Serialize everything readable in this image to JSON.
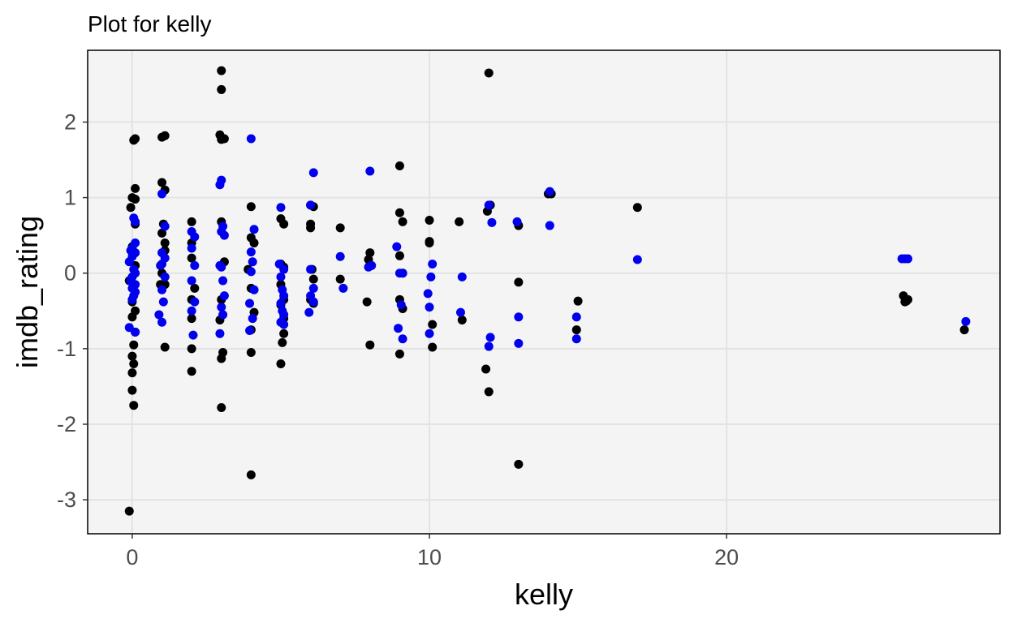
{
  "chart_data": {
    "type": "scatter",
    "title": "Plot for  kelly",
    "xlabel": "kelly",
    "ylabel": "imdb_rating",
    "xlim": [
      -1.5,
      29.2
    ],
    "ylim": [
      -3.45,
      2.95
    ],
    "x_ticks": [
      {
        "value": 0,
        "label": "0"
      },
      {
        "value": 10,
        "label": "10"
      },
      {
        "value": 20,
        "label": "20"
      }
    ],
    "y_ticks": [
      {
        "value": -3,
        "label": "-3"
      },
      {
        "value": -2,
        "label": "-2"
      },
      {
        "value": -1,
        "label": "-1"
      },
      {
        "value": 0,
        "label": "0"
      },
      {
        "value": 1,
        "label": "1"
      },
      {
        "value": 2,
        "label": "2"
      }
    ],
    "grid": true,
    "panel_background": "#f4f4f4",
    "grid_color": "#e3e3e3",
    "series": [
      {
        "color": "#000000",
        "points": [
          [
            0.1,
            1.78
          ],
          [
            0.05,
            1.76
          ],
          [
            0.0,
            1.0
          ],
          [
            0.1,
            0.98
          ],
          [
            0.1,
            1.12
          ],
          [
            -0.05,
            0.87
          ],
          [
            0.1,
            0.65
          ],
          [
            0.0,
            0.35
          ],
          [
            0.1,
            0.1
          ],
          [
            -0.1,
            -0.1
          ],
          [
            0.0,
            -0.38
          ],
          [
            0.1,
            -0.5
          ],
          [
            0.0,
            -0.58
          ],
          [
            0.1,
            -0.78
          ],
          [
            0.05,
            -0.95
          ],
          [
            0.0,
            -1.1
          ],
          [
            0.05,
            -1.2
          ],
          [
            0.0,
            -1.32
          ],
          [
            0.0,
            -1.55
          ],
          [
            0.05,
            -1.75
          ],
          [
            -0.1,
            -3.15
          ],
          [
            1.0,
            1.8
          ],
          [
            1.1,
            1.82
          ],
          [
            1.0,
            1.2
          ],
          [
            1.1,
            1.1
          ],
          [
            1.05,
            0.65
          ],
          [
            1.1,
            0.4
          ],
          [
            1.0,
            0.53
          ],
          [
            1.1,
            0.3
          ],
          [
            1.0,
            0.0
          ],
          [
            0.95,
            -0.15
          ],
          [
            1.1,
            -0.15
          ],
          [
            1.1,
            -0.98
          ],
          [
            2.0,
            0.68
          ],
          [
            2.0,
            0.4
          ],
          [
            2.0,
            0.2
          ],
          [
            2.1,
            -0.2
          ],
          [
            2.0,
            -0.35
          ],
          [
            2.0,
            -0.6
          ],
          [
            2.0,
            -1.0
          ],
          [
            2.0,
            -1.3
          ],
          [
            3.0,
            2.68
          ],
          [
            3.0,
            2.43
          ],
          [
            2.95,
            1.83
          ],
          [
            3.0,
            1.77
          ],
          [
            3.1,
            1.78
          ],
          [
            3.0,
            0.68
          ],
          [
            3.1,
            0.15
          ],
          [
            3.0,
            -0.35
          ],
          [
            2.95,
            -0.62
          ],
          [
            3.05,
            -1.05
          ],
          [
            3.0,
            -1.13
          ],
          [
            3.0,
            -1.78
          ],
          [
            4.0,
            0.88
          ],
          [
            4.0,
            0.47
          ],
          [
            4.1,
            0.4
          ],
          [
            3.9,
            0.05
          ],
          [
            4.0,
            -0.2
          ],
          [
            4.1,
            -0.52
          ],
          [
            4.0,
            -0.75
          ],
          [
            4.0,
            -1.05
          ],
          [
            4.0,
            -2.67
          ],
          [
            5.0,
            0.72
          ],
          [
            5.1,
            0.65
          ],
          [
            5.0,
            0.12
          ],
          [
            5.1,
            0.08
          ],
          [
            5.0,
            -0.15
          ],
          [
            5.1,
            -0.35
          ],
          [
            5.0,
            -0.42
          ],
          [
            5.1,
            -0.6
          ],
          [
            5.1,
            -0.8
          ],
          [
            5.05,
            -0.92
          ],
          [
            5.0,
            -1.2
          ],
          [
            6.0,
            0.9
          ],
          [
            6.1,
            0.88
          ],
          [
            6.0,
            0.65
          ],
          [
            6.0,
            0.6
          ],
          [
            6.05,
            0.05
          ],
          [
            6.1,
            -0.08
          ],
          [
            6.0,
            -0.35
          ],
          [
            6.1,
            -0.4
          ],
          [
            7.0,
            0.6
          ],
          [
            7.0,
            -0.08
          ],
          [
            8.0,
            0.27
          ],
          [
            7.95,
            0.18
          ],
          [
            8.05,
            0.1
          ],
          [
            7.9,
            -0.38
          ],
          [
            8.0,
            -0.95
          ],
          [
            9.0,
            1.42
          ],
          [
            9.0,
            0.8
          ],
          [
            9.1,
            0.68
          ],
          [
            9.0,
            0.23
          ],
          [
            9.1,
            0.0
          ],
          [
            9.0,
            -0.35
          ],
          [
            9.1,
            -0.47
          ],
          [
            9.0,
            -1.07
          ],
          [
            10.0,
            0.7
          ],
          [
            10.0,
            0.42
          ],
          [
            10.0,
            0.4
          ],
          [
            10.1,
            -0.68
          ],
          [
            10.1,
            -0.98
          ],
          [
            11.0,
            0.68
          ],
          [
            11.1,
            -0.62
          ],
          [
            12.0,
            2.65
          ],
          [
            11.95,
            0.82
          ],
          [
            12.05,
            0.9
          ],
          [
            11.9,
            -1.27
          ],
          [
            12.0,
            -1.57
          ],
          [
            13.0,
            0.63
          ],
          [
            13.0,
            -0.12
          ],
          [
            13.0,
            -2.53
          ],
          [
            14.0,
            1.05
          ],
          [
            14.1,
            1.05
          ],
          [
            15.0,
            -0.37
          ],
          [
            14.95,
            -0.75
          ],
          [
            17.0,
            0.87
          ],
          [
            25.95,
            -0.3
          ],
          [
            26.0,
            -0.38
          ],
          [
            26.1,
            -0.35
          ],
          [
            26.05,
            -0.37
          ],
          [
            28.0,
            -0.75
          ]
        ]
      },
      {
        "color": "#0000ee",
        "points": [
          [
            0.05,
            0.73
          ],
          [
            0.1,
            0.68
          ],
          [
            0.1,
            0.4
          ],
          [
            0.0,
            0.33
          ],
          [
            -0.05,
            0.3
          ],
          [
            0.1,
            0.27
          ],
          [
            0.0,
            0.22
          ],
          [
            -0.1,
            0.15
          ],
          [
            0.05,
            0.05
          ],
          [
            0.1,
            0.0
          ],
          [
            0.0,
            -0.05
          ],
          [
            -0.05,
            -0.1
          ],
          [
            0.1,
            -0.15
          ],
          [
            0.0,
            -0.2
          ],
          [
            0.1,
            -0.25
          ],
          [
            0.05,
            -0.3
          ],
          [
            0.0,
            -0.35
          ],
          [
            -0.1,
            -0.72
          ],
          [
            0.1,
            -0.78
          ],
          [
            1.0,
            1.05
          ],
          [
            1.1,
            0.62
          ],
          [
            1.0,
            0.27
          ],
          [
            1.1,
            0.2
          ],
          [
            1.0,
            0.12
          ],
          [
            0.95,
            0.1
          ],
          [
            1.1,
            -0.05
          ],
          [
            1.0,
            -0.22
          ],
          [
            1.05,
            -0.38
          ],
          [
            0.9,
            -0.55
          ],
          [
            1.0,
            -0.65
          ],
          [
            2.0,
            0.55
          ],
          [
            2.1,
            0.48
          ],
          [
            2.0,
            0.33
          ],
          [
            2.1,
            0.1
          ],
          [
            2.0,
            -0.1
          ],
          [
            2.1,
            -0.38
          ],
          [
            2.0,
            -0.5
          ],
          [
            2.05,
            -0.82
          ],
          [
            3.0,
            1.23
          ],
          [
            2.95,
            1.17
          ],
          [
            3.05,
            0.62
          ],
          [
            3.0,
            0.55
          ],
          [
            3.1,
            0.5
          ],
          [
            2.95,
            0.1
          ],
          [
            3.0,
            0.08
          ],
          [
            3.05,
            -0.1
          ],
          [
            3.1,
            -0.3
          ],
          [
            3.0,
            -0.45
          ],
          [
            3.05,
            -0.55
          ],
          [
            2.95,
            -0.8
          ],
          [
            4.0,
            1.78
          ],
          [
            4.1,
            0.58
          ],
          [
            4.0,
            0.28
          ],
          [
            4.05,
            0.15
          ],
          [
            4.0,
            0.02
          ],
          [
            4.1,
            -0.22
          ],
          [
            3.95,
            -0.4
          ],
          [
            4.05,
            -0.6
          ],
          [
            3.95,
            -0.76
          ],
          [
            5.0,
            0.87
          ],
          [
            4.95,
            0.12
          ],
          [
            5.1,
            0.05
          ],
          [
            5.0,
            -0.05
          ],
          [
            5.05,
            -0.22
          ],
          [
            5.1,
            -0.3
          ],
          [
            5.0,
            -0.4
          ],
          [
            5.05,
            -0.5
          ],
          [
            5.1,
            -0.55
          ],
          [
            5.0,
            -0.65
          ],
          [
            5.1,
            -0.68
          ],
          [
            6.1,
            1.33
          ],
          [
            6.0,
            0.9
          ],
          [
            6.0,
            0.05
          ],
          [
            6.1,
            -0.2
          ],
          [
            6.0,
            -0.3
          ],
          [
            5.95,
            -0.52
          ],
          [
            6.1,
            -0.38
          ],
          [
            7.0,
            0.22
          ],
          [
            7.1,
            -0.2
          ],
          [
            8.0,
            1.35
          ],
          [
            8.05,
            0.1
          ],
          [
            7.95,
            0.08
          ],
          [
            8.9,
            0.35
          ],
          [
            9.0,
            0.0
          ],
          [
            9.1,
            0.0
          ],
          [
            9.05,
            -0.42
          ],
          [
            8.95,
            -0.73
          ],
          [
            9.1,
            -0.87
          ],
          [
            10.1,
            0.12
          ],
          [
            10.05,
            -0.05
          ],
          [
            9.95,
            -0.27
          ],
          [
            10.0,
            -0.45
          ],
          [
            10.0,
            -0.8
          ],
          [
            11.1,
            -0.05
          ],
          [
            11.05,
            -0.52
          ],
          [
            12.0,
            0.9
          ],
          [
            12.1,
            0.67
          ],
          [
            12.05,
            -0.85
          ],
          [
            12.0,
            -0.97
          ],
          [
            12.95,
            0.68
          ],
          [
            13.0,
            -0.58
          ],
          [
            13.0,
            -0.93
          ],
          [
            14.05,
            1.08
          ],
          [
            14.05,
            0.63
          ],
          [
            14.95,
            -0.58
          ],
          [
            14.95,
            -0.87
          ],
          [
            17.0,
            0.18
          ],
          [
            25.9,
            0.19
          ],
          [
            26.0,
            0.19
          ],
          [
            26.1,
            0.19
          ],
          [
            28.05,
            -0.64
          ]
        ]
      }
    ]
  }
}
